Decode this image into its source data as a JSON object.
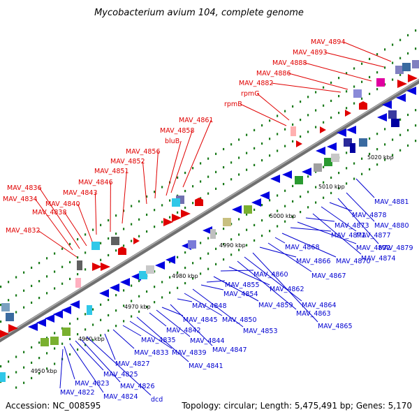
{
  "title": "Mycobacterium avium 104, complete genome",
  "footer": {
    "accession": "Accession: NC_008595",
    "summary": "Topology: circular; Length: 5,475,491 bp; Genes: 5,170"
  },
  "colors": {
    "forward_label": "#e00000",
    "reverse_label": "#0000d0",
    "backbone": "#808080",
    "tick": "#1a7a1a"
  },
  "scale_ticks": [
    "4950 kbp",
    "4960 kbp",
    "4970 kbp",
    "4980 kbp",
    "4990 kbp",
    "5000 kbp",
    "5010 kbp",
    "5020 kbp"
  ],
  "forward_genes": [
    "MAV_4832",
    "MAV_4834",
    "MAV_4836",
    "MAV_4838",
    "MAV_4840",
    "MAV_4843",
    "MAV_4846",
    "MAV_4851",
    "MAV_4852",
    "MAV_4856",
    "bluB",
    "MAV_4858",
    "MAV_4861",
    "rpmB",
    "rpmG",
    "MAV_4882",
    "MAV_4886",
    "MAV_4888",
    "MAV_4893",
    "MAV_4894"
  ],
  "reverse_genes": [
    "MAV_4822",
    "MAV_4823",
    "MAV_4824",
    "MAV_4825",
    "MAV_4826",
    "dcd",
    "MAV_4827",
    "MAV_4833",
    "MAV_4835",
    "MAV_4839",
    "MAV_4841",
    "MAV_4842",
    "MAV_4844",
    "MAV_4845",
    "MAV_4847",
    "MAV_4848",
    "MAV_4850",
    "MAV_4853",
    "MAV_4854",
    "MAV_4855",
    "MAV_4859",
    "MAV_4860",
    "MAV_4862",
    "MAV_4863",
    "MAV_4864",
    "MAV_4865",
    "MAV_4866",
    "MAV_4867",
    "MAV_4868",
    "MAV_4870",
    "MAV_4871",
    "MAV_4872",
    "MAV_4873",
    "MAV_4874",
    "MAV_4877",
    "MAV_4878",
    "MAV_4879",
    "MAV_4880",
    "MAV_4881"
  ]
}
